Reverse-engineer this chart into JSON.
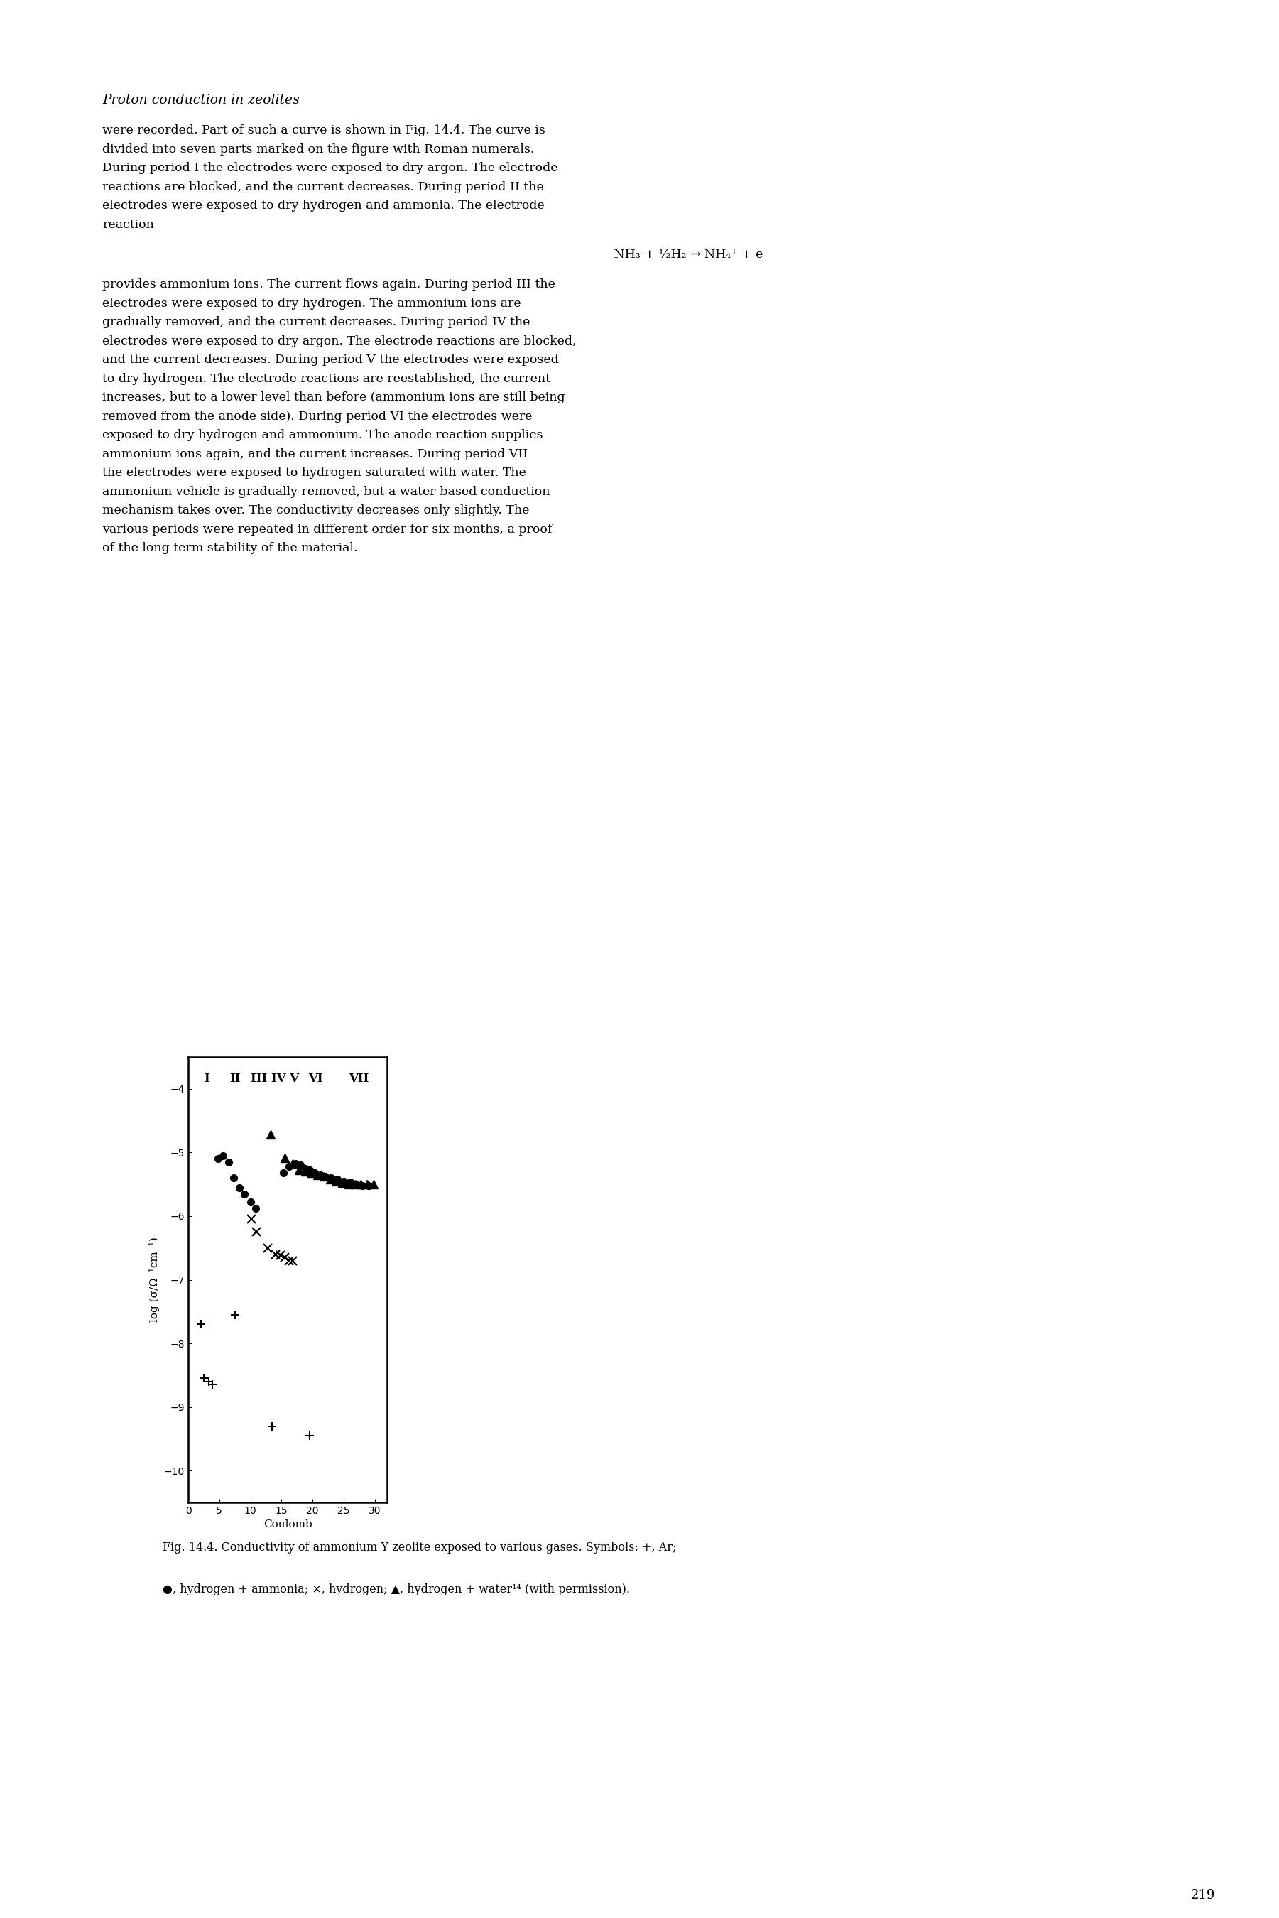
{
  "xlabel": "Coulomb",
  "ylabel": "log (σ/Ω⁻¹cm⁻¹)",
  "xlim": [
    0,
    32
  ],
  "ylim": [
    -10.5,
    -3.5
  ],
  "yticks": [
    -10,
    -9,
    -8,
    -7,
    -6,
    -5,
    -4
  ],
  "xticks": [
    0,
    5,
    10,
    15,
    20,
    25,
    30
  ],
  "roman_labels": [
    "I",
    "II",
    "III IV V",
    "VI",
    "VII"
  ],
  "roman_x": [
    3.0,
    7.5,
    14.0,
    20.5,
    27.5
  ],
  "plus_data": {
    "x": [
      2.0,
      2.5,
      3.3,
      3.9,
      7.5,
      13.5,
      19.5
    ],
    "y": [
      -7.7,
      -8.55,
      -8.6,
      -8.65,
      -7.55,
      -9.3,
      -9.45
    ]
  },
  "circle_data": {
    "x": [
      4.8,
      5.6,
      6.5,
      7.3,
      8.2,
      9.0,
      10.0,
      10.8,
      15.3,
      16.2,
      17.2,
      18.0,
      18.8,
      19.5,
      20.3,
      21.2,
      22.0,
      23.0,
      24.0,
      25.0,
      26.0,
      27.0,
      28.0,
      29.0
    ],
    "y": [
      -5.1,
      -5.05,
      -5.15,
      -5.4,
      -5.55,
      -5.65,
      -5.78,
      -5.88,
      -5.32,
      -5.22,
      -5.18,
      -5.2,
      -5.25,
      -5.28,
      -5.32,
      -5.35,
      -5.38,
      -5.4,
      -5.42,
      -5.45,
      -5.47,
      -5.5,
      -5.52,
      -5.52
    ]
  },
  "cross_data": {
    "x": [
      10.2,
      11.0,
      12.8,
      14.0,
      14.8,
      15.5,
      16.2,
      16.8
    ],
    "y": [
      -6.05,
      -6.25,
      -6.5,
      -6.6,
      -6.62,
      -6.65,
      -6.7,
      -6.7
    ]
  },
  "triangle_data": {
    "x": [
      13.2,
      15.5,
      16.8,
      17.8,
      18.8,
      19.8,
      20.8,
      21.8,
      22.8,
      23.8,
      24.8,
      25.8,
      26.8,
      27.8,
      28.8,
      29.8
    ],
    "y": [
      -4.72,
      -5.08,
      -5.18,
      -5.28,
      -5.3,
      -5.32,
      -5.35,
      -5.38,
      -5.42,
      -5.45,
      -5.48,
      -5.5,
      -5.5,
      -5.5,
      -5.5,
      -5.5
    ]
  },
  "background_color": "#ffffff",
  "marker_color": "#000000",
  "fontsize_axis_label": 11,
  "fontsize_tick": 10,
  "fontsize_roman": 12,
  "heading": "Proton conduction in zeolites",
  "body_lines": [
    "were recorded. Part of such a curve is shown in Fig. 14.4. The curve is",
    "divided into seven parts marked on the figure with Roman numerals.",
    "During period I the electrodes were exposed to dry argon. The electrode",
    "reactions are blocked, and the current decreases. During period II the",
    "electrodes were exposed to dry hydrogen and ammonia. The electrode",
    "reaction",
    "",
    "                         NH₃ + ½H₂ → NH₄⁺ + e",
    "",
    "provides ammonium ions. The current flows again. During period III the",
    "electrodes were exposed to dry hydrogen. The ammonium ions are",
    "gradually removed, and the current decreases. During period IV the",
    "electrodes were exposed to dry argon. The electrode reactions are blocked,",
    "and the current decreases. During period V the electrodes were exposed",
    "to dry hydrogen. The electrode reactions are reestablished, the current",
    "increases, but to a lower level than before (ammonium ions are still being",
    "removed from the anode side). During period VI the electrodes were",
    "exposed to dry hydrogen and ammonium. The anode reaction supplies",
    "ammonium ions again, and the current increases. During period VII",
    "the electrodes were exposed to hydrogen saturated with water. The",
    "ammonium vehicle is gradually removed, but a water-based conduction",
    "mechanism takes over. The conductivity decreases only slightly. The",
    "various periods were repeated in different order for six months, a proof",
    "of the long term stability of the material."
  ],
  "caption_line1": "Fig. 14.4. Conductivity of ammonium Y zeolite exposed to various gases. Symbols: +, Ar;",
  "caption_line2": "●, hydrogen + ammonia; ×, hydrogen; ▲, hydrogen + water¹⁴ (with permission).",
  "page_number": "219"
}
